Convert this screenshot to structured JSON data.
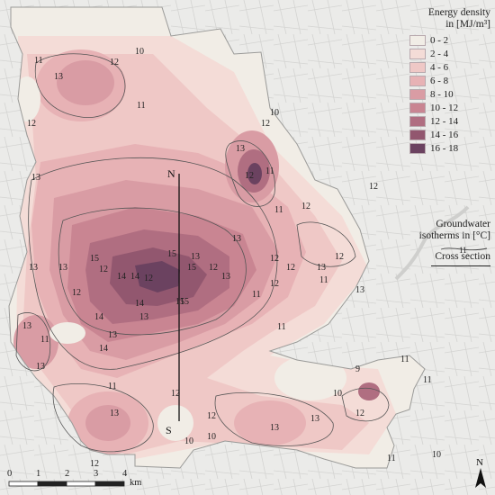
{
  "legend": {
    "title_line1": "Energy density",
    "title_line2": "in [MJ/m³]",
    "classes": [
      {
        "label": "0 - 2",
        "color": "#f1ede6"
      },
      {
        "label": "2 - 4",
        "color": "#f4dcd7"
      },
      {
        "label": "4 - 6",
        "color": "#efc8c6"
      },
      {
        "label": "6 - 8",
        "color": "#e7b2b5"
      },
      {
        "label": "8 - 10",
        "color": "#d99ca4"
      },
      {
        "label": "10 - 12",
        "color": "#c98592"
      },
      {
        "label": "12 - 14",
        "color": "#b06e81"
      },
      {
        "label": "14 - 16",
        "color": "#92576f"
      },
      {
        "label": "16 - 18",
        "color": "#6b4260"
      }
    ]
  },
  "isotherms": {
    "label_line1": "Groundwater",
    "label_line2": "isotherms in [°C]",
    "sample_value": "11"
  },
  "cross_section": {
    "label": "Cross section",
    "start": "N",
    "end": "S"
  },
  "contour_labels": [
    "10",
    "11",
    "12",
    "13",
    "11",
    "12",
    "13",
    "12",
    "11",
    "13",
    "12",
    "11",
    "10",
    "12",
    "12",
    "12",
    "13",
    "13",
    "15",
    "14",
    "13",
    "13",
    "13",
    "12",
    "15",
    "14",
    "15",
    "12",
    "11",
    "12",
    "15",
    "13",
    "14",
    "14",
    "11",
    "12",
    "11",
    "13",
    "12",
    "14",
    "15",
    "13",
    "11",
    "12",
    "13",
    "12",
    "11",
    "10",
    "12",
    "13",
    "12",
    "13",
    "12",
    "10",
    "13",
    "13",
    "10",
    "11",
    "11",
    "9",
    "10",
    "11",
    "13",
    "12"
  ],
  "scale": {
    "ticks": [
      "0",
      "1",
      "2",
      "3",
      "4"
    ],
    "unit": "km"
  },
  "north_label": "N"
}
